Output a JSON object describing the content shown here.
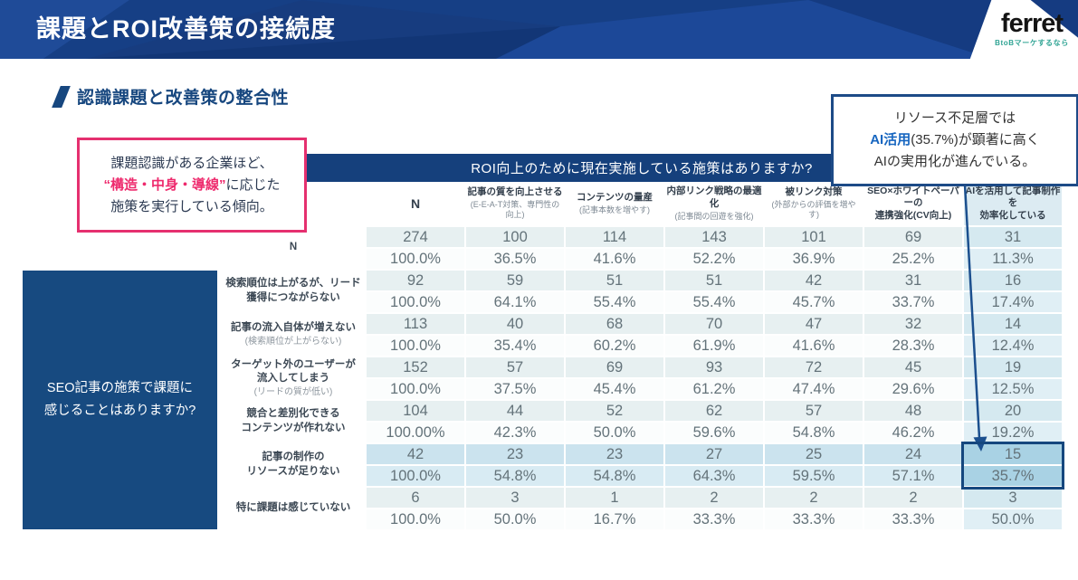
{
  "header": {
    "title": "課題とROI改善策の接続度",
    "logo": {
      "text": "ferret",
      "tagline": "BtoBマーケするなら"
    }
  },
  "section": {
    "title": "認識課題と改善策の整合性"
  },
  "callout_pink": {
    "line1": "課題認識がある企業ほど、",
    "highlight": "“構造・中身・導線”",
    "line2_rest": "に応じた",
    "line3": "施策を実行している傾向。"
  },
  "callout_blue": {
    "line1": "リソース不足層では",
    "line2_bold": "AI活用",
    "line2_rest": "(35.7%)が顕著に高く",
    "line3": "AIの実用化が進んでいる。"
  },
  "table": {
    "banner": "ROI向上のために現在実施している施策はありますか?",
    "question": "SEO記事の施策で課題に\n感じることはありますか?",
    "columns": [
      {
        "main": "N",
        "sub": ""
      },
      {
        "main": "記事の質を向上させる",
        "sub": "(E-E-A-T対策、専門性の\n向上)"
      },
      {
        "main": "コンテンツの量産",
        "sub": "(記事本数を増やす)"
      },
      {
        "main": "内部リンク戦略の最適化",
        "sub": "(記事間の回遊を強化)"
      },
      {
        "main": "被リンク対策",
        "sub": "(外部からの評価を増や\nす)"
      },
      {
        "main": "SEO×ホワイトペーパーの\n連携強化(CV向上)",
        "sub": ""
      },
      {
        "main": "AIを活用して記事制作を\n効率化している",
        "sub": ""
      }
    ],
    "rows": [
      {
        "label": "N",
        "sub": "",
        "highlight": false,
        "counts": [
          "274",
          "100",
          "114",
          "143",
          "101",
          "69",
          "31"
        ],
        "percents": [
          "100.0%",
          "36.5%",
          "41.6%",
          "52.2%",
          "36.9%",
          "25.2%",
          "11.3%"
        ]
      },
      {
        "label": "検索順位は上がるが、リード\n獲得につながらない",
        "sub": "",
        "highlight": false,
        "counts": [
          "92",
          "59",
          "51",
          "51",
          "42",
          "31",
          "16"
        ],
        "percents": [
          "100.0%",
          "64.1%",
          "55.4%",
          "55.4%",
          "45.7%",
          "33.7%",
          "17.4%"
        ]
      },
      {
        "label": "記事の流入自体が増えない",
        "sub": "(検索順位が上がらない)",
        "highlight": false,
        "counts": [
          "113",
          "40",
          "68",
          "70",
          "47",
          "32",
          "14"
        ],
        "percents": [
          "100.0%",
          "35.4%",
          "60.2%",
          "61.9%",
          "41.6%",
          "28.3%",
          "12.4%"
        ]
      },
      {
        "label": "ターゲット外のユーザーが\n流入してしまう",
        "sub": "(リードの質が低い)",
        "highlight": false,
        "counts": [
          "152",
          "57",
          "69",
          "93",
          "72",
          "45",
          "19"
        ],
        "percents": [
          "100.0%",
          "37.5%",
          "45.4%",
          "61.2%",
          "47.4%",
          "29.6%",
          "12.5%"
        ]
      },
      {
        "label": "競合と差別化できる\nコンテンツが作れない",
        "sub": "",
        "highlight": false,
        "counts": [
          "104",
          "44",
          "52",
          "62",
          "57",
          "48",
          "20"
        ],
        "percents": [
          "100.00%",
          "42.3%",
          "50.0%",
          "59.6%",
          "54.8%",
          "46.2%",
          "19.2%"
        ]
      },
      {
        "label": "記事の制作の\nリソースが足りない",
        "sub": "",
        "highlight": true,
        "counts": [
          "42",
          "23",
          "23",
          "27",
          "25",
          "24",
          "15"
        ],
        "percents": [
          "100.0%",
          "54.8%",
          "54.8%",
          "64.3%",
          "59.5%",
          "57.1%",
          "35.7%"
        ]
      },
      {
        "label": "特に課題は感じていない",
        "sub": "",
        "highlight": false,
        "counts": [
          "6",
          "3",
          "1",
          "2",
          "2",
          "2",
          "3"
        ],
        "percents": [
          "100.0%",
          "50.0%",
          "16.7%",
          "33.3%",
          "33.3%",
          "33.3%",
          "50.0%"
        ]
      }
    ]
  },
  "colors": {
    "navy": "#15407c",
    "topbar": "#163f85",
    "pink": "#e5306f",
    "highlight_cell_border": "#15477e",
    "highlight_row_bg": "#cbe3ee",
    "last_col_bg": "#dcebf2",
    "logo_teal": "#2ea393"
  }
}
